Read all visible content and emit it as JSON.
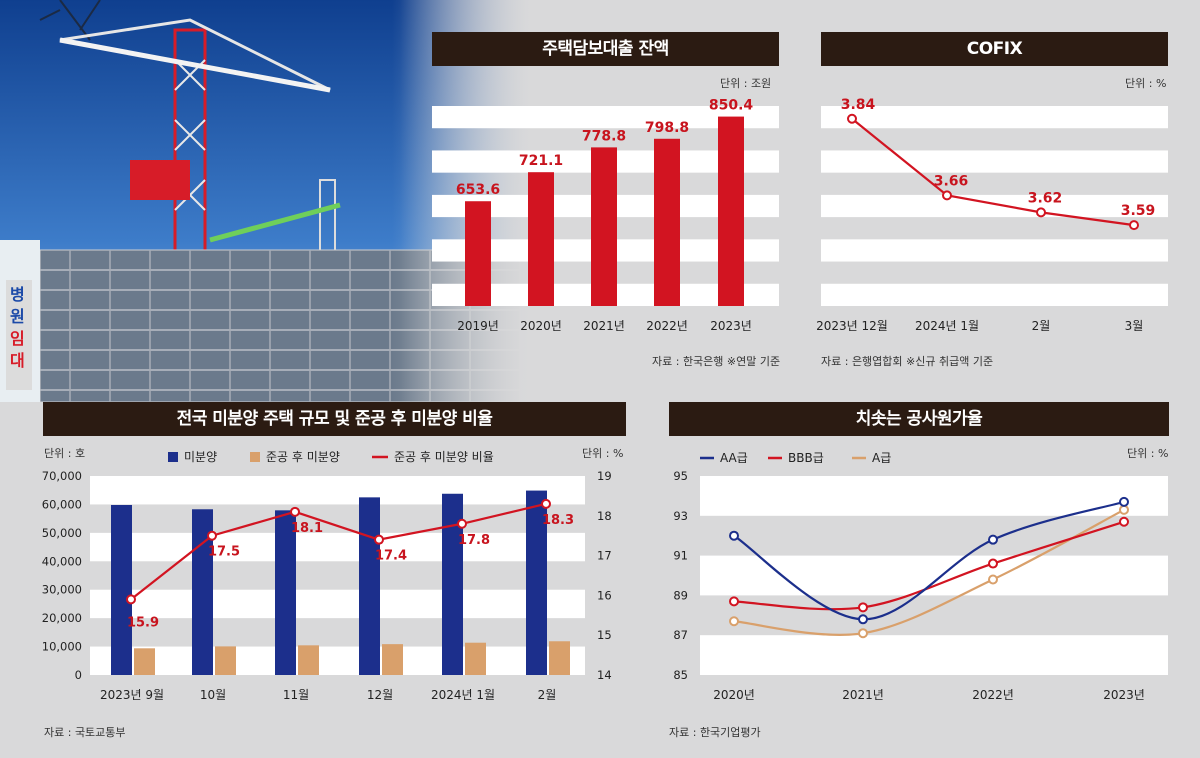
{
  "charts": {
    "mortgage": {
      "title": "주택담보대출 잔액",
      "unit": "단위 : 조원",
      "source": "자료 : 한국은행 ※연말 기준",
      "bar_color": "#d21421",
      "label_color": "#c8141e"
    },
    "cofix": {
      "title": "COFIX",
      "unit": "단위 : %",
      "source": "자료 : 은행엽합회 ※신규 취급액 기준",
      "line_color": "#d21421"
    },
    "unsold": {
      "title": "전국 미분양 주택 규모 및 준공 후 미분양 비율",
      "unit_left": "단위 : 호",
      "unit_right": "단위 : %",
      "source": "자료 : 국토교통부",
      "colors": {
        "unsold": "#1c2f8c",
        "completed": "#d9a06b",
        "ratio": "#d21421"
      }
    },
    "bond": {
      "title": "치솟는 공사원가율",
      "unit": "단위 : %",
      "source": "자료 : 한국기업평가",
      "colors": {
        "AA": "#1c2f8c",
        "BBB": "#d21421",
        "A": "#d9a06b"
      }
    }
  },
  "chart_data": [
    {
      "type": "bar",
      "title": "주택담보대출 잔액",
      "categories": [
        "2019년",
        "2020년",
        "2021년",
        "2022년",
        "2023년"
      ],
      "values": [
        653.6,
        721.1,
        778.8,
        798.8,
        850.4
      ],
      "value_labels": [
        "653.6",
        "721.1",
        "778.8",
        "798.8",
        "850.4"
      ],
      "ylim": [
        410,
        875
      ],
      "grid": "horizontal bands"
    },
    {
      "type": "line",
      "title": "COFIX",
      "categories": [
        "2023년 12월",
        "2024년 1월",
        "2월",
        "3월"
      ],
      "values": [
        3.84,
        3.66,
        3.62,
        3.59
      ],
      "value_labels": [
        "3.84",
        "3.66",
        "3.62",
        "3.59"
      ],
      "ylim": [
        3.4,
        3.87
      ],
      "grid": "horizontal bands"
    },
    {
      "type": "bar",
      "title": "전국 미분양 주택 규모 및 준공 후 미분양 비율",
      "categories": [
        "2023년 9월",
        "10월",
        "11월",
        "12월",
        "2024년 1월",
        "2월"
      ],
      "left_ticks": [
        "0",
        "10,000",
        "20,000",
        "30,000",
        "40,000",
        "50,000",
        "60,000",
        "70,000"
      ],
      "right_ticks": [
        "14",
        "15",
        "16",
        "17",
        "18",
        "19"
      ],
      "ylim": [
        0,
        70000
      ],
      "y2lim": [
        14,
        19
      ],
      "legend": "top",
      "series": [
        {
          "name": "미분양",
          "kind": "bar",
          "axis": "left",
          "values": [
            59806,
            58299,
            57925,
            62489,
            63755,
            64874
          ]
        },
        {
          "name": "준공 후 미분양",
          "kind": "bar",
          "axis": "left",
          "values": [
            9392,
            10065,
            10438,
            10857,
            11363,
            11867
          ]
        },
        {
          "name": "준공 후 미분양 비율",
          "kind": "line",
          "axis": "right",
          "values": [
            15.9,
            17.5,
            18.1,
            17.4,
            17.8,
            18.3
          ],
          "value_labels": [
            "15.9",
            "17.5",
            "18.1",
            "17.4",
            "17.8",
            "18.3"
          ]
        }
      ]
    },
    {
      "type": "line",
      "title": "치솟는 공사원가율",
      "categories": [
        "2020년",
        "2021년",
        "2022년",
        "2023년"
      ],
      "ticks": [
        "85",
        "87",
        "89",
        "91",
        "93",
        "95"
      ],
      "ylim": [
        85,
        95
      ],
      "legend": "top-left",
      "series": [
        {
          "name": "AA급",
          "values": [
            92.0,
            87.8,
            91.8,
            93.7
          ]
        },
        {
          "name": "BBB급",
          "values": [
            88.7,
            88.4,
            90.6,
            92.7
          ]
        },
        {
          "name": "A급",
          "values": [
            87.7,
            87.1,
            89.8,
            93.3
          ]
        }
      ]
    }
  ]
}
